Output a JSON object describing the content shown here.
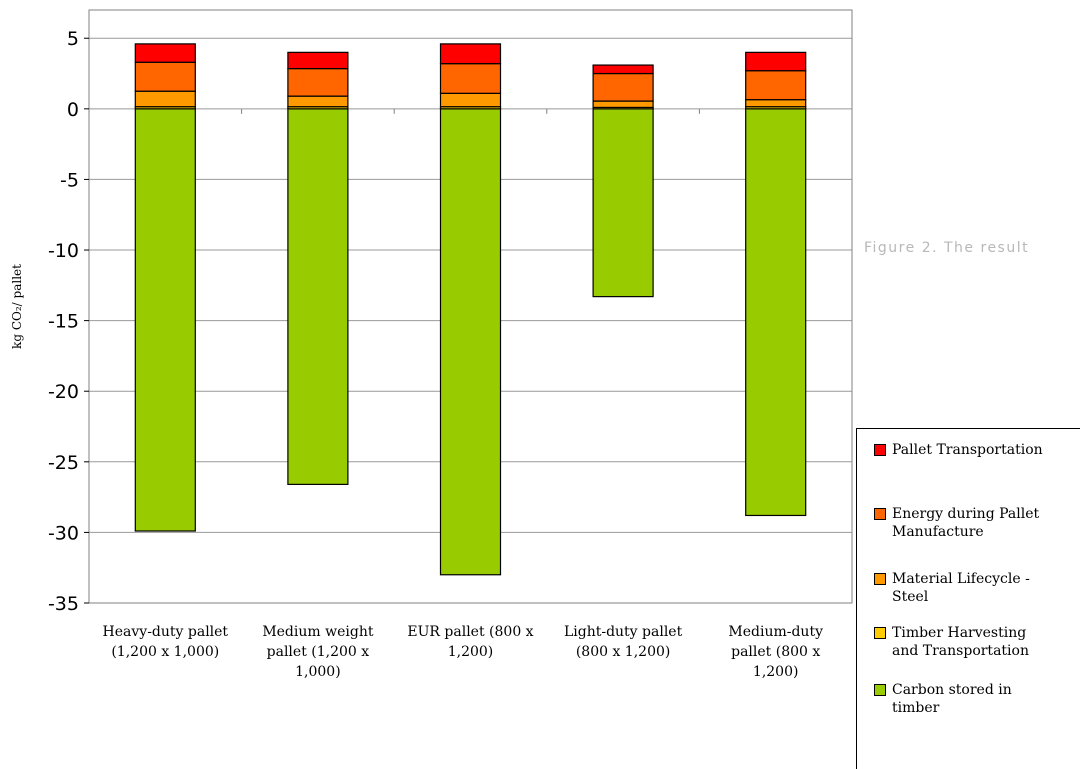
{
  "chart_data": {
    "type": "bar",
    "stacked": true,
    "ylabel": "kg CO₂/ pallet",
    "ylim": [
      -35,
      7
    ],
    "yticks": [
      5,
      0,
      -5,
      -10,
      -15,
      -20,
      -25,
      -30,
      -35
    ],
    "grid": true,
    "legend_position": "right",
    "categories": [
      "Heavy-duty pallet (1,200 x 1,000)",
      "Medium weight pallet (1,200 x 1,000)",
      "EUR pallet (800 x 1,200)",
      "Light-duty pallet (800 x 1,200)",
      "Medium-duty pallet (800 x 1,200)"
    ],
    "category_lines": [
      [
        "Heavy-duty pallet",
        "(1,200 x 1,000)"
      ],
      [
        "Medium weight",
        "pallet  (1,200 x",
        "1,000)"
      ],
      [
        "EUR pallet  (800 x",
        "1,200)"
      ],
      [
        "Light-duty pallet",
        "(800 x 1,200)"
      ],
      [
        "Medium-duty",
        "pallet  (800 x",
        "1,200)"
      ]
    ],
    "series": [
      {
        "name": "Carbon stored in timber",
        "color": "#99cc00",
        "values": [
          -29.9,
          -26.6,
          -33.0,
          -13.3,
          -28.8
        ]
      },
      {
        "name": "Timber Harvesting and Transportation",
        "color": "#ffcc00",
        "values": [
          0.15,
          0.15,
          0.15,
          0.1,
          0.15
        ]
      },
      {
        "name": "Material Lifecycle - Steel",
        "color": "#ff9900",
        "values": [
          1.1,
          0.75,
          0.95,
          0.45,
          0.5
        ]
      },
      {
        "name": "Energy during Pallet Manufacture",
        "color": "#ff6600",
        "values": [
          2.05,
          1.95,
          2.1,
          1.95,
          2.05
        ]
      },
      {
        "name": "Pallet Transportation",
        "color": "#ff0000",
        "values": [
          1.3,
          1.15,
          1.4,
          0.6,
          1.3
        ]
      }
    ],
    "legend_order": [
      "Pallet Transportation",
      "Energy during Pallet Manufacture",
      "Material Lifecycle - Steel",
      "Timber Harvesting and Transportation",
      "Carbon stored in timber"
    ],
    "legend_lines": [
      [
        "Pallet Transportation"
      ],
      [
        "Energy during Pallet",
        "Manufacture"
      ],
      [
        "Material Lifecycle -",
        "Steel"
      ],
      [
        "Timber Harvesting",
        "and Transportation"
      ],
      [
        "Carbon stored in",
        "timber"
      ]
    ]
  },
  "caption": "Figure 2. The result"
}
